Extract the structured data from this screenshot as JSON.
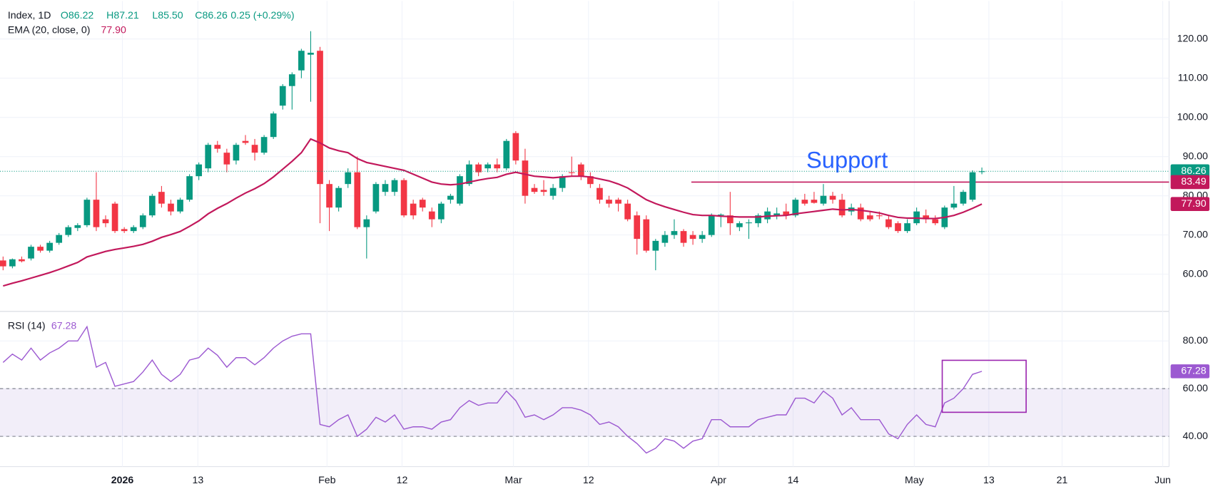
{
  "chart_data": [
    {
      "type": "candlestick",
      "title": "Index, 1D",
      "ohlc_labels": [
        "O86.22",
        "H87.21",
        "L85.50",
        "C86.26"
      ],
      "change": "0.25 (+0.29%)",
      "up_color": "#089981",
      "down_color": "#f23645",
      "open": [
        63.5,
        62,
        63.8,
        64,
        67,
        66,
        68,
        70,
        71.8,
        72.5,
        79,
        74,
        78,
        71.5,
        71,
        72,
        75,
        81,
        78,
        76,
        79,
        85,
        87,
        93,
        91,
        89,
        94,
        93,
        91,
        95,
        103,
        108,
        112,
        116,
        117,
        83,
        77,
        83,
        86,
        72,
        76,
        81,
        81,
        84,
        78,
        79,
        76,
        74,
        79,
        78,
        83,
        88,
        87,
        88,
        87,
        96,
        89,
        82,
        81.5,
        80,
        82,
        86,
        88,
        85,
        82,
        79,
        79,
        78,
        75,
        74,
        66,
        68,
        70,
        71,
        70,
        69,
        70,
        75,
        75,
        72,
        73,
        73,
        74,
        75,
        76,
        75,
        79,
        79,
        78,
        80,
        79,
        76,
        77,
        75,
        75,
        74,
        73,
        71,
        73,
        75,
        74,
        72,
        77,
        78,
        79,
        86.22
      ],
      "high": [
        64.5,
        64,
        64.5,
        67.5,
        67.5,
        68.5,
        70.5,
        72.5,
        73,
        79.5,
        86,
        75,
        78.5,
        72,
        72.5,
        75.5,
        80.5,
        82.5,
        79,
        79.5,
        85.5,
        88.5,
        93.5,
        94,
        92,
        93.5,
        95.5,
        94.5,
        95.5,
        101.5,
        108.5,
        111.5,
        117.5,
        122,
        118,
        84,
        82.5,
        87,
        90,
        75,
        83.5,
        84,
        84.5,
        84.5,
        79,
        79.5,
        77,
        78.5,
        80.5,
        85.5,
        89,
        88.5,
        88.5,
        89.5,
        94.5,
        96.5,
        92,
        83,
        84,
        83,
        85.5,
        90,
        88.5,
        86,
        83,
        80,
        79.5,
        79,
        76,
        75,
        69,
        71,
        74,
        71.5,
        71,
        71,
        75.5,
        75.5,
        81,
        73.5,
        74,
        75.5,
        77,
        77,
        78,
        79.5,
        80.5,
        81,
        83,
        81,
        80.5,
        78,
        78,
        76,
        76,
        75,
        73.5,
        74,
        77,
        76.5,
        75,
        77.5,
        82.5,
        81.5,
        86.5,
        87.21
      ],
      "low": [
        61,
        61.5,
        63,
        63.5,
        65.5,
        65.5,
        67.5,
        69.5,
        71,
        72,
        71,
        72,
        70.5,
        70.5,
        70.5,
        71.5,
        74.5,
        77,
        75,
        75.5,
        78.5,
        84,
        86,
        91,
        86,
        88,
        93,
        89,
        90.5,
        94.5,
        102,
        102,
        110,
        104,
        73,
        71,
        76,
        82,
        71.5,
        64,
        75.5,
        80,
        80,
        74.5,
        74,
        76,
        72,
        73,
        78,
        77.5,
        82.5,
        85,
        86,
        86,
        86.5,
        88,
        78,
        80.5,
        80,
        79,
        81,
        85,
        84,
        82,
        78,
        77,
        76,
        73.5,
        65,
        65.5,
        61,
        67,
        69,
        67,
        67.5,
        68,
        69.5,
        72,
        70,
        71,
        69,
        72,
        73,
        74,
        74,
        74.5,
        77.5,
        78,
        77.5,
        78,
        74.5,
        75,
        73.5,
        73.5,
        74,
        71.5,
        70.5,
        70.5,
        72.5,
        73,
        72.5,
        71.5,
        76.5,
        77.5,
        78.5,
        85.5
      ],
      "close": [
        62,
        63.8,
        63.3,
        67,
        66,
        68,
        70,
        72,
        72.5,
        79,
        72,
        73,
        71,
        71,
        72,
        75,
        80,
        78,
        76,
        79,
        85,
        88,
        93,
        92,
        88,
        93,
        93.5,
        91,
        95,
        101,
        108,
        111,
        117,
        116.5,
        83,
        77,
        82,
        86,
        72,
        74,
        83,
        83,
        84,
        75,
        75,
        77,
        74,
        78,
        80,
        85,
        88,
        86,
        88,
        87,
        94,
        89,
        80,
        81,
        81,
        82,
        85,
        85.8,
        85,
        83,
        79,
        78,
        78,
        74,
        69,
        66,
        68.5,
        70,
        71,
        68,
        69,
        70,
        75,
        75.2,
        73,
        73,
        73.2,
        75,
        76,
        75.5,
        75,
        79,
        78,
        78.2,
        80,
        79,
        75,
        77,
        74,
        74,
        74.8,
        72,
        71,
        73,
        76,
        74,
        73,
        77,
        78,
        81,
        86,
        86.26
      ],
      "series": [
        {
          "name": "EMA (20, close, 0)",
          "color": "#c2185b",
          "value_label": "77.90",
          "values": [
            57,
            57.7,
            58.3,
            59,
            59.7,
            60.4,
            61.2,
            62.1,
            63,
            64.4,
            65.1,
            65.8,
            66.3,
            66.7,
            67.1,
            67.6,
            68.4,
            69.4,
            70.1,
            70.9,
            72.2,
            73.6,
            75.4,
            76.8,
            78,
            79.4,
            80.7,
            81.8,
            83.1,
            84.8,
            86.8,
            88.8,
            91,
            94.5,
            93.5,
            92.2,
            91.5,
            91,
            89.5,
            88.5,
            88,
            87.5,
            87,
            86.5,
            85.5,
            84.5,
            83.5,
            83,
            82.8,
            83,
            83.5,
            84,
            84.4,
            84.7,
            85.5,
            86,
            85.5,
            85,
            84.8,
            84.6,
            84.8,
            85,
            85,
            84.8,
            84.3,
            83.8,
            83,
            82,
            80.5,
            79,
            78,
            77.2,
            76.5,
            75.8,
            75.2,
            75,
            75,
            74.8,
            74.7,
            74.6,
            74.6,
            74.6,
            74.8,
            74.9,
            75,
            75.4,
            75.7,
            76,
            76.3,
            76.6,
            76.4,
            76.5,
            76.3,
            76,
            75.6,
            75,
            74.5,
            74.3,
            74.3,
            74.2,
            74.2,
            74.5,
            75,
            75.8,
            76.8,
            77.9
          ]
        }
      ],
      "support": {
        "label": "Support",
        "value": 83.49,
        "color": "#c2185b",
        "label_color": "#2962ff"
      },
      "ylim": [
        50.5,
        129.7
      ],
      "yticks": [
        {
          "value": 60,
          "label": "60.00"
        },
        {
          "value": 70,
          "label": "70.00"
        },
        {
          "value": 80,
          "label": "80.00"
        },
        {
          "value": 90,
          "label": "90.00"
        },
        {
          "value": 100,
          "label": "100.00"
        },
        {
          "value": 110,
          "label": "110.00"
        },
        {
          "value": 120,
          "label": "120.00"
        }
      ],
      "xlim": [
        -0.33,
        125.08
      ],
      "xticks": [
        {
          "value": 12.8,
          "label": "2026"
        },
        {
          "value": 20.9,
          "label": "13"
        },
        {
          "value": 34.75,
          "label": "Feb"
        },
        {
          "value": 42.8,
          "label": "12"
        },
        {
          "value": 54.75,
          "label": "Mar"
        },
        {
          "value": 62.8,
          "label": "12"
        },
        {
          "value": 76.75,
          "label": "Apr"
        },
        {
          "value": 84.75,
          "label": "14"
        },
        {
          "value": 97.75,
          "label": "May"
        },
        {
          "value": 105.75,
          "label": "13"
        },
        {
          "value": 113.6,
          "label": "21"
        },
        {
          "value": 124.4,
          "label": "Jun"
        }
      ],
      "grid": true
    },
    {
      "type": "line",
      "title": "RSI (14)",
      "series": [
        {
          "color": "#9c59d1",
          "values": [
            71,
            74.5,
            72,
            77,
            72,
            75,
            77,
            80,
            80,
            86,
            69,
            71,
            61,
            62,
            63,
            67,
            72,
            66,
            63,
            66,
            72,
            73,
            77,
            74,
            69,
            73,
            73,
            70,
            73,
            77,
            80,
            82,
            83,
            83,
            45,
            44,
            47,
            49,
            40,
            43,
            48,
            46,
            49,
            43,
            44,
            44,
            43,
            46,
            47,
            52,
            55,
            53,
            54,
            54,
            59,
            55,
            48,
            49,
            47,
            49,
            52,
            52,
            51,
            49,
            45,
            46,
            44,
            40,
            37,
            33,
            35,
            39,
            38,
            35,
            38,
            39,
            47,
            47,
            44,
            44,
            44,
            47,
            48,
            49,
            49,
            56,
            56,
            54,
            59,
            56,
            49,
            52,
            47,
            47,
            47,
            41,
            39,
            45,
            49,
            45,
            44,
            54,
            56,
            60,
            66,
            67.28
          ]
        }
      ],
      "band": [
        40,
        60
      ],
      "ylim": [
        27.3,
        92.4
      ],
      "yticks": [
        {
          "value": 40,
          "label": "40.00"
        },
        {
          "value": 60,
          "label": "60.00"
        },
        {
          "value": 80,
          "label": "80.00"
        }
      ],
      "grid": true
    }
  ]
}
